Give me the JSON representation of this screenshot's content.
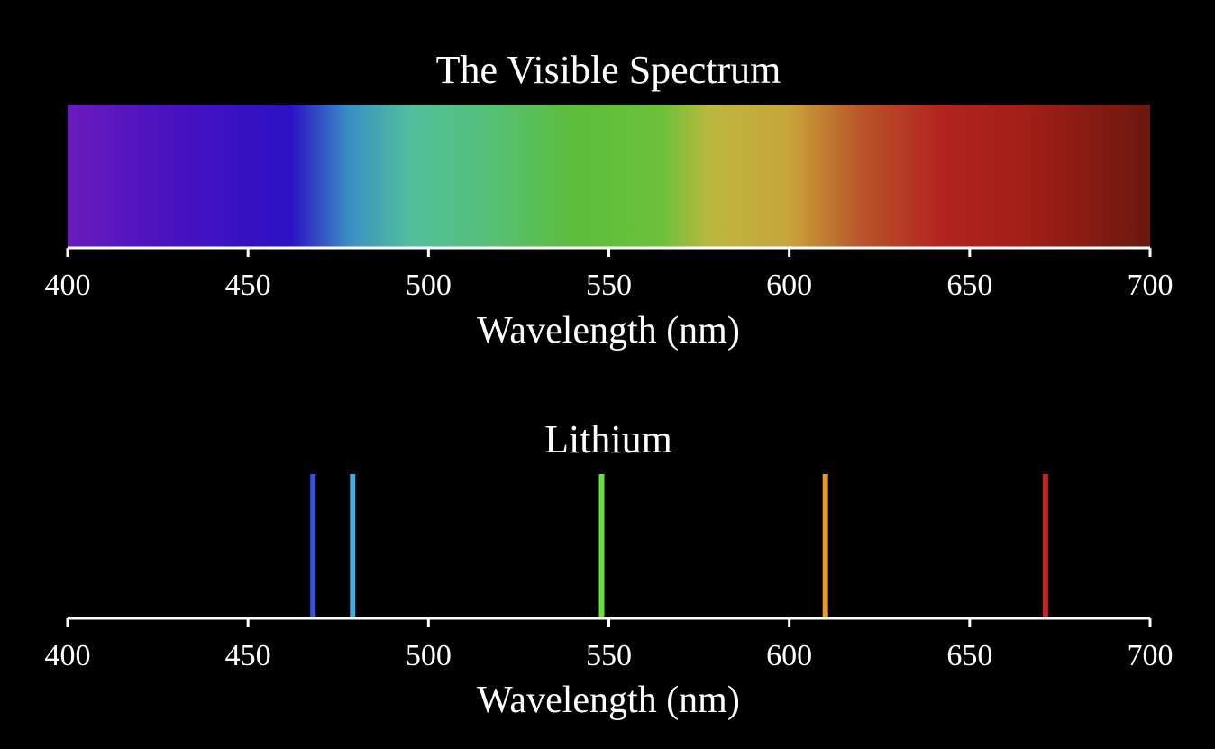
{
  "chart_data": [
    {
      "type": "heatmap",
      "title": "The Visible Spectrum",
      "xlabel": "Wavelength (nm)",
      "xlim": [
        400,
        700
      ],
      "xticks": [
        "400",
        "450",
        "500",
        "550",
        "600",
        "650",
        "700"
      ],
      "gradient_stops": [
        {
          "nm": 400,
          "color": "#6a1bbd"
        },
        {
          "nm": 430,
          "color": "#4612c0"
        },
        {
          "nm": 462,
          "color": "#2c12c4"
        },
        {
          "nm": 478,
          "color": "#3a8fc4"
        },
        {
          "nm": 495,
          "color": "#52bf9c"
        },
        {
          "nm": 515,
          "color": "#55c07c"
        },
        {
          "nm": 540,
          "color": "#5cbd3c"
        },
        {
          "nm": 565,
          "color": "#6cc13a"
        },
        {
          "nm": 578,
          "color": "#bcb83e"
        },
        {
          "nm": 600,
          "color": "#c8a43a"
        },
        {
          "nm": 620,
          "color": "#b8552a"
        },
        {
          "nm": 642,
          "color": "#b32320"
        },
        {
          "nm": 665,
          "color": "#a21f17"
        },
        {
          "nm": 700,
          "color": "#6b1810"
        }
      ]
    },
    {
      "type": "bar",
      "title": "Lithium",
      "xlabel": "Wavelength (nm)",
      "xlim": [
        400,
        700
      ],
      "xticks": [
        "400",
        "450",
        "500",
        "550",
        "600",
        "650",
        "700"
      ],
      "lines": [
        {
          "nm": 468,
          "color": "#3b52d6"
        },
        {
          "nm": 479,
          "color": "#4aa9dc"
        },
        {
          "nm": 548,
          "color": "#66e03a"
        },
        {
          "nm": 610,
          "color": "#e89a2c"
        },
        {
          "nm": 671,
          "color": "#c8241c"
        }
      ]
    }
  ]
}
